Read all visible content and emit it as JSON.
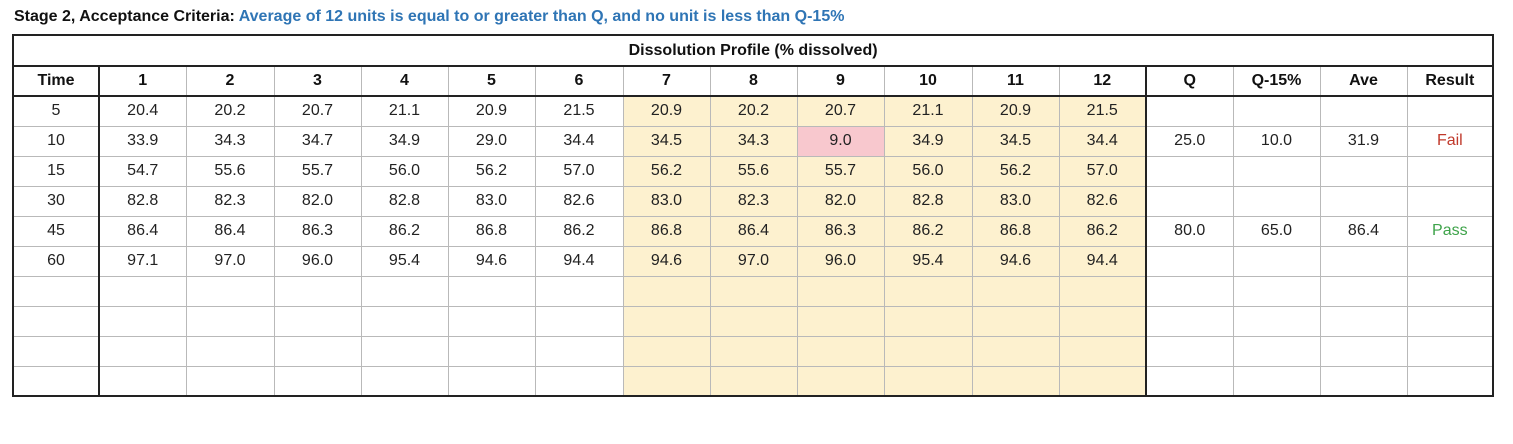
{
  "caption": {
    "label": "Stage 2, Acceptance Criteria:",
    "criteria": "Average of 12 units is equal to or greater than Q, and no unit is less than Q-15%"
  },
  "table": {
    "title": "Dissolution Profile (% dissolved)",
    "headers": [
      "Time",
      "1",
      "2",
      "3",
      "4",
      "5",
      "6",
      "7",
      "8",
      "9",
      "10",
      "11",
      "12",
      "Q",
      "Q-15%",
      "Ave",
      "Result"
    ],
    "rows": [
      {
        "time": "5",
        "units": [
          "20.4",
          "20.2",
          "20.7",
          "21.1",
          "20.9",
          "21.5",
          "20.9",
          "20.2",
          "20.7",
          "21.1",
          "20.9",
          "21.5"
        ],
        "q": "",
        "q15": "",
        "ave": "",
        "result": ""
      },
      {
        "time": "10",
        "units": [
          "33.9",
          "34.3",
          "34.7",
          "34.9",
          "29.0",
          "34.4",
          "34.5",
          "34.3",
          "9.0",
          "34.9",
          "34.5",
          "34.4"
        ],
        "q": "25.0",
        "q15": "10.0",
        "ave": "31.9",
        "result": "Fail"
      },
      {
        "time": "15",
        "units": [
          "54.7",
          "55.6",
          "55.7",
          "56.0",
          "56.2",
          "57.0",
          "56.2",
          "55.6",
          "55.7",
          "56.0",
          "56.2",
          "57.0"
        ],
        "q": "",
        "q15": "",
        "ave": "",
        "result": ""
      },
      {
        "time": "30",
        "units": [
          "82.8",
          "82.3",
          "82.0",
          "82.8",
          "83.0",
          "82.6",
          "83.0",
          "82.3",
          "82.0",
          "82.8",
          "83.0",
          "82.6"
        ],
        "q": "",
        "q15": "",
        "ave": "",
        "result": ""
      },
      {
        "time": "45",
        "units": [
          "86.4",
          "86.4",
          "86.3",
          "86.2",
          "86.8",
          "86.2",
          "86.8",
          "86.4",
          "86.3",
          "86.2",
          "86.8",
          "86.2"
        ],
        "q": "80.0",
        "q15": "65.0",
        "ave": "86.4",
        "result": "Pass"
      },
      {
        "time": "60",
        "units": [
          "97.1",
          "97.0",
          "96.0",
          "95.4",
          "94.6",
          "94.4",
          "94.6",
          "97.0",
          "96.0",
          "95.4",
          "94.6",
          "94.4"
        ],
        "q": "",
        "q15": "",
        "ave": "",
        "result": ""
      },
      {
        "time": "",
        "units": [
          "",
          "",
          "",
          "",
          "",
          "",
          "",
          "",
          "",
          "",
          "",
          ""
        ],
        "q": "",
        "q15": "",
        "ave": "",
        "result": ""
      },
      {
        "time": "",
        "units": [
          "",
          "",
          "",
          "",
          "",
          "",
          "",
          "",
          "",
          "",
          "",
          ""
        ],
        "q": "",
        "q15": "",
        "ave": "",
        "result": ""
      },
      {
        "time": "",
        "units": [
          "",
          "",
          "",
          "",
          "",
          "",
          "",
          "",
          "",
          "",
          "",
          ""
        ],
        "q": "",
        "q15": "",
        "ave": "",
        "result": ""
      },
      {
        "time": "",
        "units": [
          "",
          "",
          "",
          "",
          "",
          "",
          "",
          "",
          "",
          "",
          "",
          ""
        ],
        "q": "",
        "q15": "",
        "ave": "",
        "result": ""
      }
    ],
    "colors": {
      "stage2_shade": "#fdf1cf",
      "flagged_cell": "#f8c8ce",
      "fail": "#c0392b",
      "pass": "#3ea34a",
      "criteria_text": "#2f75b5"
    }
  }
}
